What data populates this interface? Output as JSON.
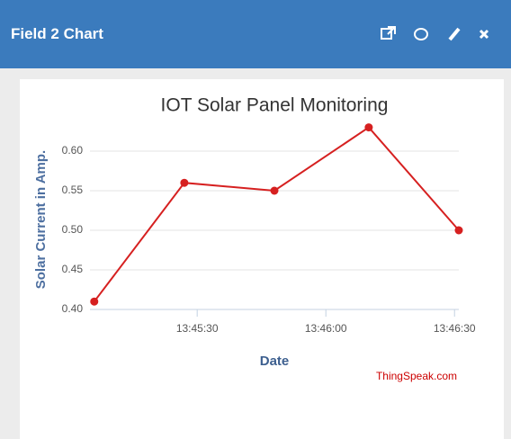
{
  "header": {
    "title": "Field 2 Chart"
  },
  "chart_data": {
    "type": "line",
    "title": "IOT Solar Panel Monitoring",
    "x_label": "Date",
    "y_label": "Solar Current in Amp.",
    "credit": "ThingSpeak.com",
    "x": [
      "13:45:06",
      "13:45:27",
      "13:45:48",
      "13:46:10",
      "13:46:31"
    ],
    "series": [
      {
        "name": "Field 2",
        "color": "#d62020",
        "values": [
          0.41,
          0.56,
          0.55,
          0.63,
          0.5
        ]
      }
    ],
    "xlim": [
      "13:45:05",
      "13:46:31"
    ],
    "xticks": [
      "13:45:30",
      "13:46:00",
      "13:46:30"
    ],
    "ylim": [
      0.4,
      0.65
    ],
    "yticks": [
      {
        "value": 0.4,
        "label": "0.40"
      },
      0.45,
      {
        "value": 0.5,
        "label": "0.50"
      },
      0.55,
      {
        "value": 0.6,
        "label": "0.60"
      }
    ],
    "grid": true
  }
}
